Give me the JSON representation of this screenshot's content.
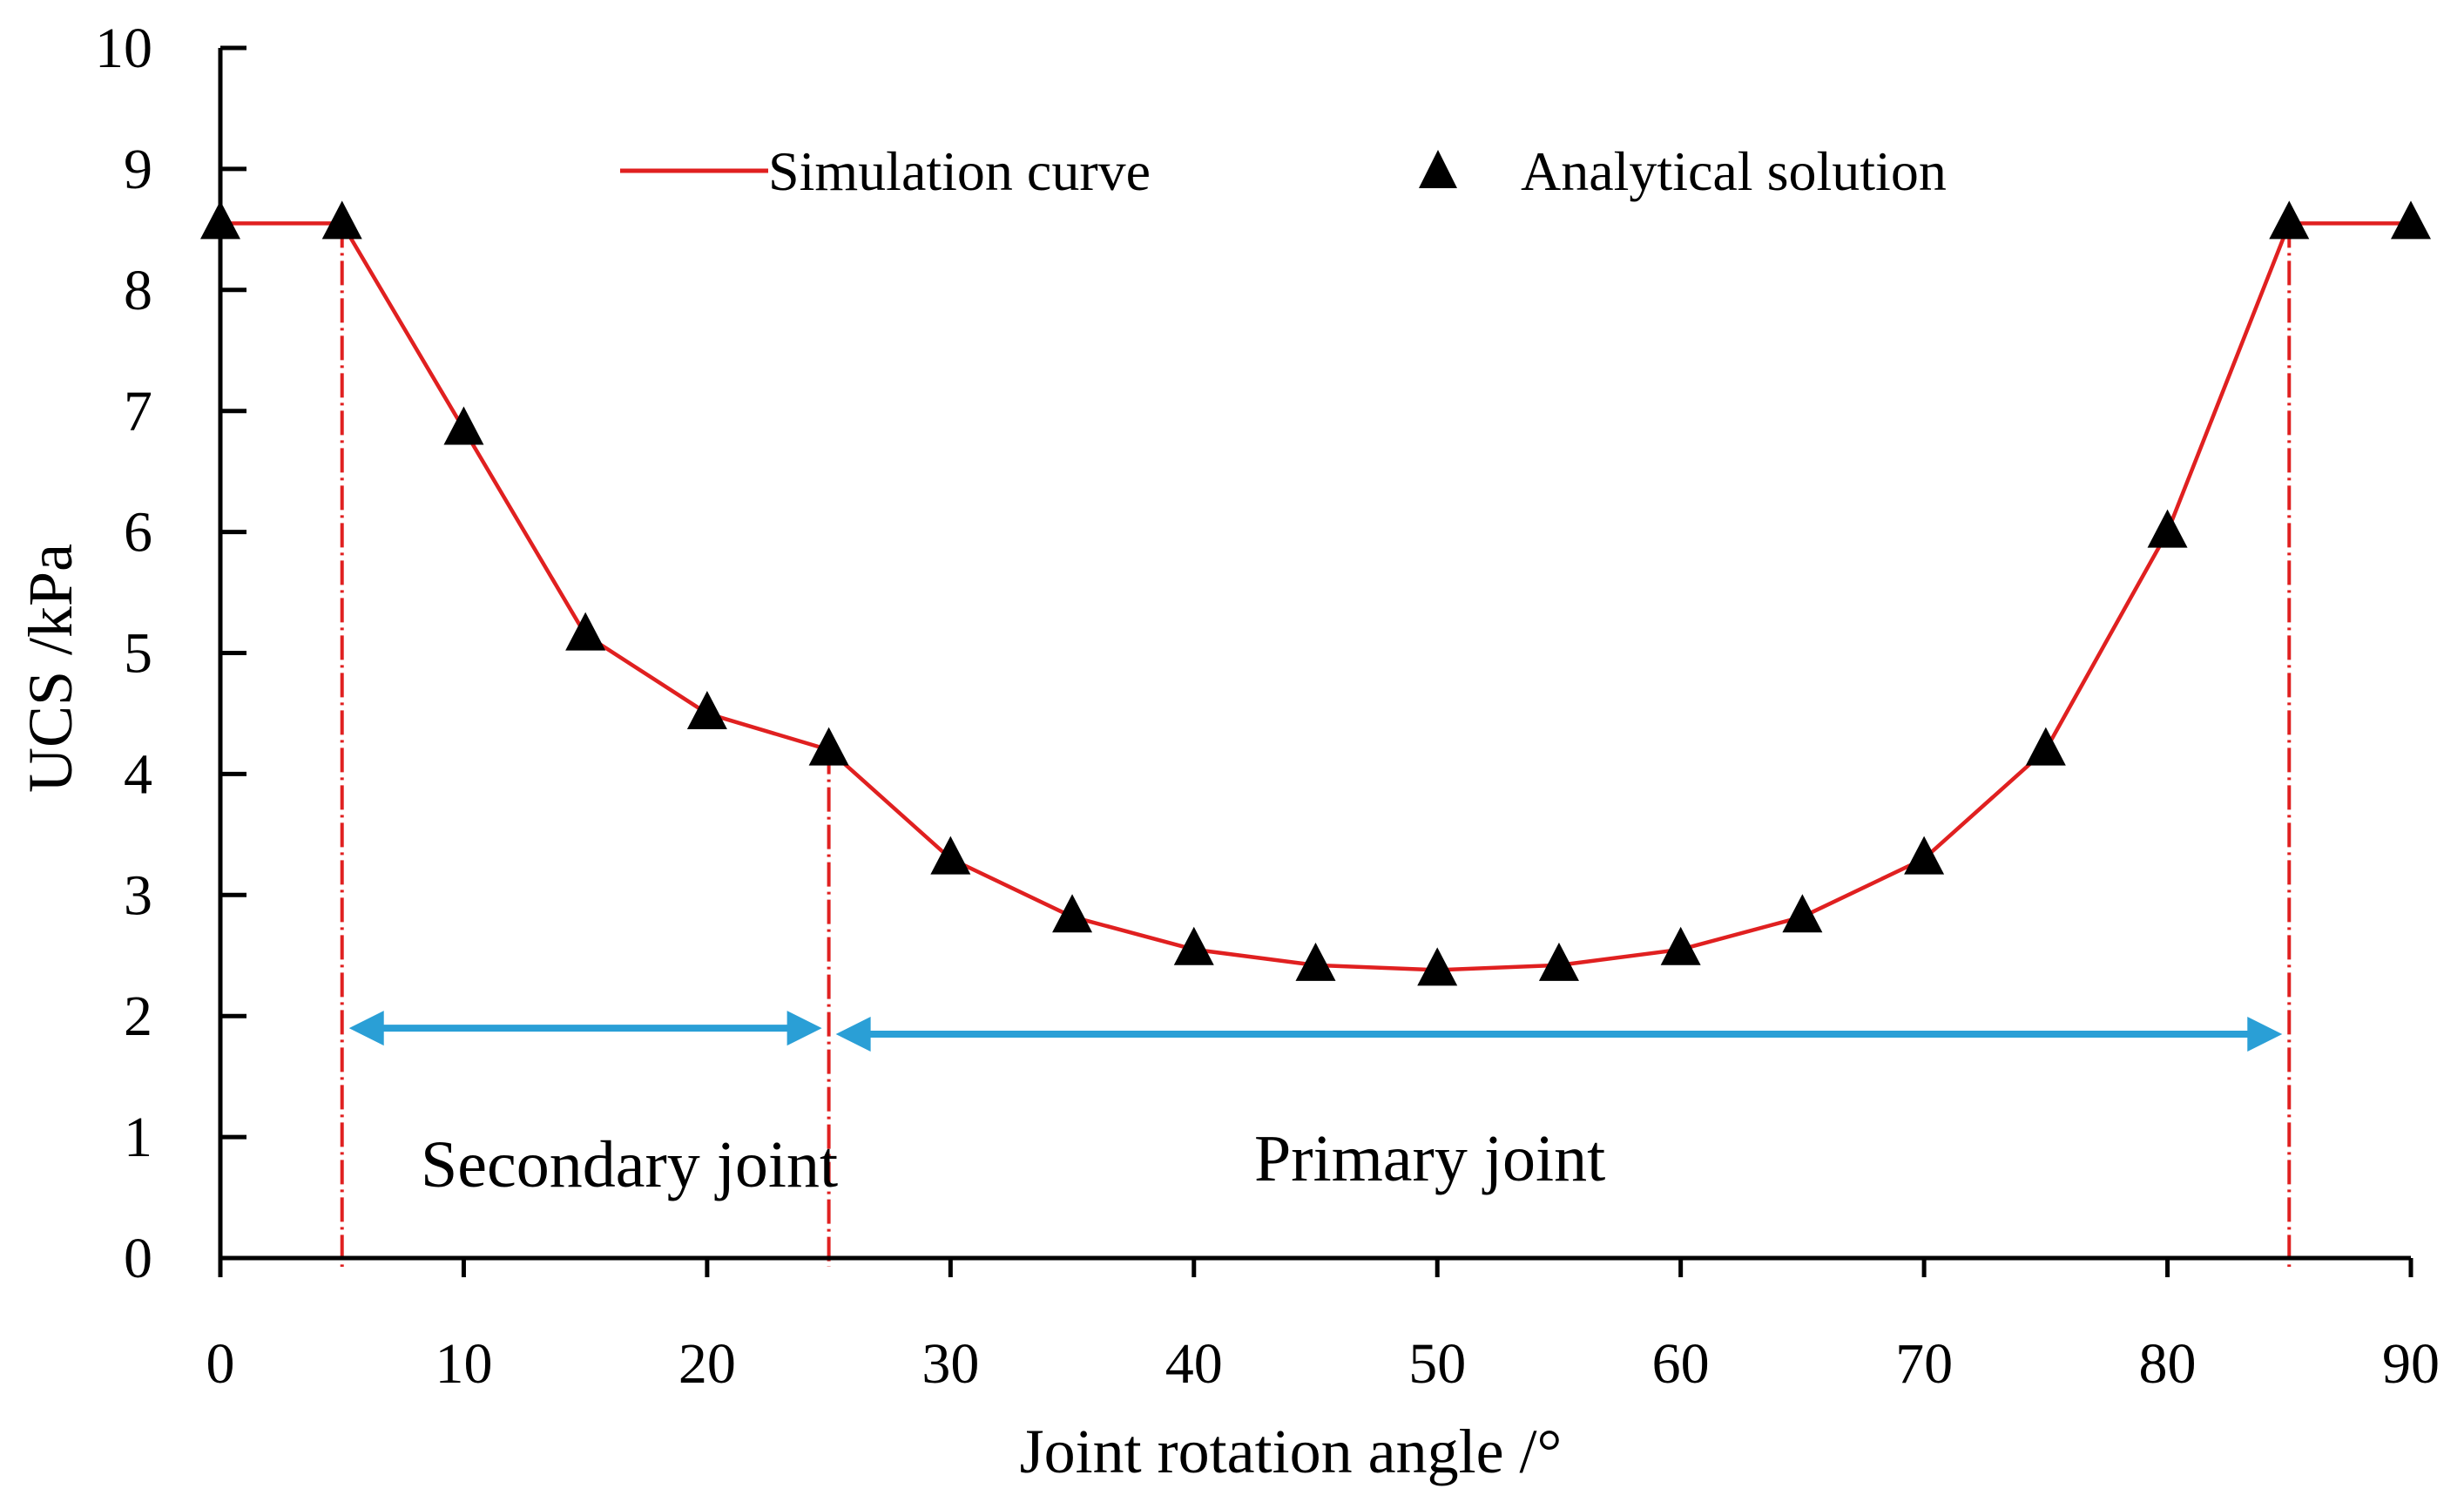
{
  "chart_data": {
    "type": "line",
    "title": "",
    "xlabel": "Joint rotation angle /°",
    "ylabel": "UCS /kPa",
    "xlim": [
      0,
      90
    ],
    "ylim": [
      0,
      10
    ],
    "xticks": [
      0,
      10,
      20,
      30,
      40,
      50,
      60,
      70,
      80,
      90
    ],
    "yticks": [
      0,
      1,
      2,
      3,
      4,
      5,
      6,
      7,
      8,
      9,
      10
    ],
    "grid": false,
    "legend_position": "top",
    "series": [
      {
        "name": "Simulation curve",
        "style": "line",
        "color": "#e02020",
        "x": [
          0,
          5,
          10,
          15,
          20,
          25,
          30,
          35,
          40,
          45,
          50,
          55,
          60,
          65,
          70,
          75,
          80,
          85,
          90
        ],
        "y": [
          8.55,
          8.55,
          6.85,
          5.15,
          4.5,
          4.2,
          3.3,
          2.82,
          2.55,
          2.42,
          2.38,
          2.42,
          2.55,
          2.82,
          3.3,
          4.2,
          6.0,
          8.55,
          8.55
        ]
      },
      {
        "name": "Analytical solution",
        "style": "triangle-marker",
        "color": "#000000",
        "x": [
          0,
          5,
          10,
          15,
          20,
          25,
          30,
          35,
          40,
          45,
          50,
          55,
          60,
          65,
          70,
          75,
          80,
          85,
          90
        ],
        "y": [
          8.55,
          8.55,
          6.85,
          5.15,
          4.5,
          4.2,
          3.3,
          2.82,
          2.55,
          2.42,
          2.38,
          2.42,
          2.55,
          2.82,
          3.3,
          4.2,
          6.0,
          8.55,
          8.55
        ]
      }
    ],
    "reference_lines": {
      "color": "#e02020",
      "style": "dashed-vertical",
      "x": [
        5,
        25,
        85
      ],
      "y_top": [
        8.55,
        4.2,
        8.55
      ]
    },
    "regions": [
      {
        "label": "Secondary joint",
        "x_start": 5,
        "x_end": 25,
        "arrow_y": 1.9
      },
      {
        "label": "Primary joint",
        "x_start": 25,
        "x_end": 85,
        "arrow_y": 1.85
      }
    ],
    "arrow_color": "#2a9fd6"
  }
}
